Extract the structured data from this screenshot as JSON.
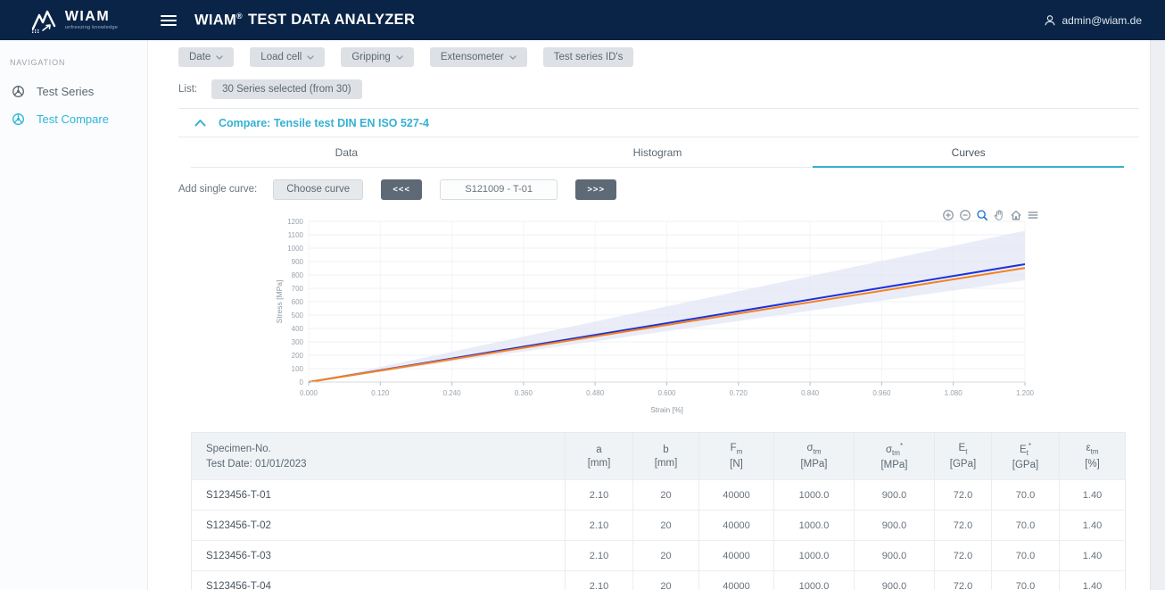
{
  "colors": {
    "header_bg": "#0a2447",
    "accent": "#2eb5d8"
  },
  "header": {
    "logo_text": "WIAM",
    "logo_tagline": "unfreezing knowledge",
    "title_brand": "WIAM",
    "title_reg": "®",
    "title_rest": "TEST DATA ANALYZER",
    "user_email": "admin@wiam.de"
  },
  "sidebar": {
    "section_label": "NAVIGATION",
    "items": [
      {
        "label": "Test Series",
        "active": false
      },
      {
        "label": "Test Compare",
        "active": true
      }
    ]
  },
  "filters": {
    "buttons": [
      {
        "label": "Date",
        "has_dropdown": true
      },
      {
        "label": "Load cell",
        "has_dropdown": true
      },
      {
        "label": "Gripping",
        "has_dropdown": true
      },
      {
        "label": "Extensometer",
        "has_dropdown": true
      },
      {
        "label": "Test series ID's",
        "has_dropdown": false
      }
    ],
    "list_label": "List:",
    "list_selection": "30 Series selected (from 30)"
  },
  "compare": {
    "title": "Compare: Tensile test DIN EN ISO 527-4",
    "tabs": [
      {
        "label": "Data",
        "active": false
      },
      {
        "label": "Histogram",
        "active": false
      },
      {
        "label": "Curves",
        "active": true
      }
    ],
    "add_curve": {
      "label": "Add single curve:",
      "choose_button": "Choose curve",
      "prev_button": "<<<",
      "current_curve": "S121009 - T-01",
      "next_button": ">>>"
    }
  },
  "chart_toolbar": [
    "zoom-in",
    "zoom-out",
    "box-zoom (active)",
    "pan",
    "reset-home",
    "menu"
  ],
  "chart_data": {
    "type": "line",
    "title": "",
    "xlabel": "Strain [%]",
    "ylabel": "Stress [MPa]",
    "xlim": [
      0,
      1.2
    ],
    "ylim": [
      0,
      1200
    ],
    "grid": true,
    "legend": "none",
    "x_ticks": {
      "values": [
        0,
        0.12,
        0.24,
        0.36,
        0.48,
        0.6,
        0.72,
        0.84,
        0.96,
        1.08,
        1.2
      ],
      "labels": [
        "0.000",
        "0.120",
        "0.240",
        "0.360",
        "0.480",
        "0.600",
        "0.720",
        "0.840",
        "0.960",
        "1.080",
        "1.200"
      ]
    },
    "y_ticks": {
      "values": [
        0,
        100,
        200,
        300,
        400,
        500,
        600,
        700,
        800,
        900,
        1000,
        1100,
        1200
      ],
      "labels": [
        "0",
        "100",
        "200",
        "300",
        "400",
        "500",
        "600",
        "700",
        "800",
        "900",
        "1000",
        "1100",
        "1200"
      ]
    },
    "band": {
      "name": "scatter band",
      "x": [
        0,
        1.2
      ],
      "upper": [
        0,
        1130
      ],
      "lower": [
        0,
        760
      ],
      "color": "#dfe3f5"
    },
    "series": [
      {
        "name": "blue curve",
        "x": [
          0,
          1.2
        ],
        "y": [
          0,
          880
        ],
        "color": "#1c33dd"
      },
      {
        "name": "orange curve (S121009 - T-01)",
        "x": [
          0,
          1.2
        ],
        "y": [
          0,
          852
        ],
        "color": "#f5801e"
      }
    ]
  },
  "table": {
    "header": {
      "specimen_line1": "Specimen-No.",
      "specimen_line2": "Test Date: 01/01/2023",
      "columns": [
        {
          "base": "a",
          "sub": "",
          "star": "",
          "unit": "[mm]"
        },
        {
          "base": "b",
          "sub": "",
          "star": "",
          "unit": "[mm]"
        },
        {
          "base": "F",
          "sub": "m",
          "star": "",
          "unit": "[N]"
        },
        {
          "base": "σ",
          "sub": "tm",
          "star": "",
          "unit": "[MPa]"
        },
        {
          "base": "σ",
          "sub": "tm",
          "star": "*",
          "unit": "[MPa]"
        },
        {
          "base": "E",
          "sub": "t",
          "star": "",
          "unit": "[GPa]"
        },
        {
          "base": "E",
          "sub": "t",
          "star": "*",
          "unit": "[GPa]"
        },
        {
          "base": "ε",
          "sub": "tm",
          "star": "",
          "unit": "[%]"
        }
      ]
    },
    "rows": [
      {
        "specimen": "S123456-T-01",
        "values": [
          "2.10",
          "20",
          "40000",
          "1000.0",
          "900.0",
          "72.0",
          "70.0",
          "1.40"
        ]
      },
      {
        "specimen": "S123456-T-02",
        "values": [
          "2.10",
          "20",
          "40000",
          "1000.0",
          "900.0",
          "72.0",
          "70.0",
          "1.40"
        ]
      },
      {
        "specimen": "S123456-T-03",
        "values": [
          "2.10",
          "20",
          "40000",
          "1000.0",
          "900.0",
          "72.0",
          "70.0",
          "1.40"
        ]
      },
      {
        "specimen": "S123456-T-04",
        "values": [
          "2.10",
          "20",
          "40000",
          "1000.0",
          "900.0",
          "72.0",
          "70.0",
          "1.40"
        ]
      }
    ]
  }
}
